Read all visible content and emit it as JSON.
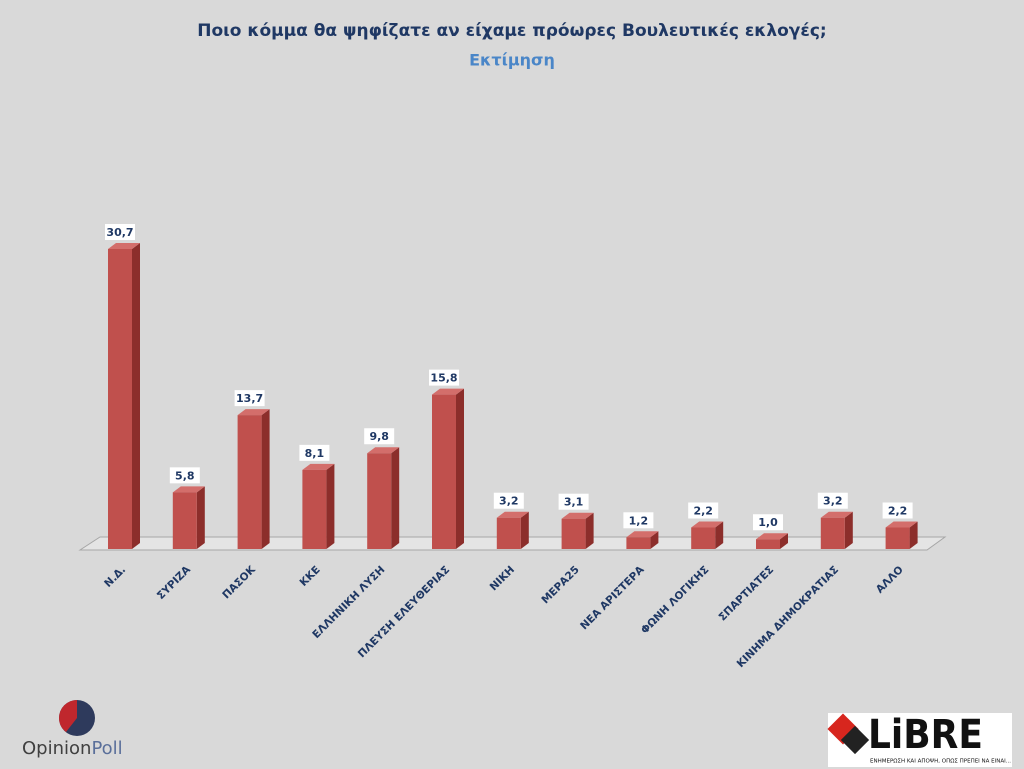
{
  "chart_data": {
    "type": "bar",
    "title": "Ποιο κόμμα θα ψηφίζατε αν είχαμε πρόωρες Βουλευτικές εκλογές;",
    "subtitle": "Εκτίμηση",
    "categories": [
      "Ν.Δ.",
      "ΣΥΡΙΖΑ",
      "ΠΑΣΟΚ",
      "ΚΚΕ",
      "ΕΛΛΗΝΙΚΗ ΛΥΣΗ",
      "ΠΛΕΥΣΗ ΕΛΕΥΘΕΡΙΑΣ",
      "ΝΙΚΗ",
      "ΜΕΡΑ25",
      "ΝΕΑ ΑΡΙΣΤΕΡΑ",
      "ΦΩΝΗ ΛΟΓΙΚΗΣ",
      "ΣΠΑΡΤΙΑΤΕΣ",
      "ΚΙΝΗΜΑ ΔΗΜΟΚΡΑΤΙΑΣ",
      "ΑΛΛΟ"
    ],
    "values": [
      30.7,
      5.8,
      13.7,
      8.1,
      9.8,
      15.8,
      3.2,
      3.1,
      1.2,
      2.2,
      1.0,
      3.2,
      2.2
    ],
    "value_labels": [
      "30,7",
      "5,8",
      "13,7",
      "8,1",
      "9,8",
      "15,8",
      "3,2",
      "3,1",
      "1,2",
      "2,2",
      "1,0",
      "3,2",
      "2,2"
    ],
    "color": "#c0504d"
  },
  "logos": {
    "opinion_poll": [
      "Opinion",
      "Poll"
    ],
    "libre": "LiBRE",
    "libre_tagline": "ΕΝΗΜΕΡΩΣΗ ΚΑΙ ΑΠΟΨΗ, ΟΠΩΣ ΠΡΕΠΕΙ ΝΑ ΕΙΝΑΙ..."
  }
}
